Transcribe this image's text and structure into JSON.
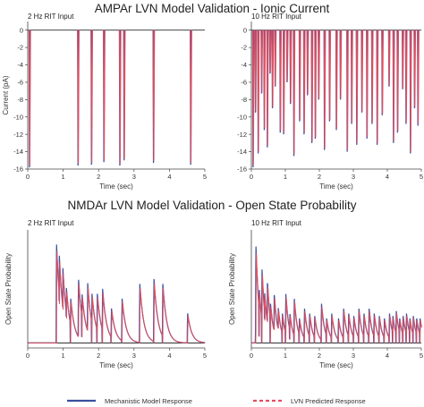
{
  "titles": {
    "top": "AMPAr LVN Model Validation - Ionic Current",
    "bottom": "NMDAr LVN Model Validation - Open State Probability"
  },
  "colors": {
    "mechanistic": "#3a4fa0",
    "lvn": "#e05060",
    "axis": "#444444",
    "baseline": "#2a2a2a"
  },
  "legend": {
    "mechanistic": "Mechanistic Model Response",
    "lvn": "LVN Predicted Response",
    "placement": "bottom"
  },
  "chart_data": [
    {
      "id": "ampa-2hz",
      "type": "line",
      "title": "2 Hz RIT Input",
      "xlabel": "Time (sec)",
      "ylabel": "Current (pA)",
      "xlim": [
        0,
        5
      ],
      "ylim": [
        -16,
        1
      ],
      "xticks": [
        0,
        1,
        2,
        3,
        4,
        5
      ],
      "yticks": [
        0,
        -2,
        -4,
        -6,
        -8,
        -10,
        -12,
        -14,
        -16
      ],
      "grid": false,
      "events": [
        {
          "t": 0.05,
          "peak": -15.8
        },
        {
          "t": 1.42,
          "peak": -15.6
        },
        {
          "t": 1.8,
          "peak": -15.5
        },
        {
          "t": 2.15,
          "peak": -15.2
        },
        {
          "t": 2.6,
          "peak": -15.6
        },
        {
          "t": 2.72,
          "peak": -15.0
        },
        {
          "t": 3.55,
          "peak": -15.3
        },
        {
          "t": 4.6,
          "peak": -15.5
        }
      ],
      "series": [
        {
          "name": "Mechanistic Model Response"
        },
        {
          "name": "LVN Predicted Response"
        }
      ]
    },
    {
      "id": "ampa-10hz",
      "type": "line",
      "title": "10 Hz RIT Input",
      "xlabel": "Time (sec)",
      "ylabel": "",
      "xlim": [
        0,
        5
      ],
      "ylim": [
        -16,
        1
      ],
      "xticks": [
        0,
        1,
        2,
        3,
        4,
        5
      ],
      "yticks": [
        0,
        -2,
        -4,
        -6,
        -8,
        -10,
        -12,
        -14,
        -16
      ],
      "grid": false,
      "events": [
        {
          "t": 0.05,
          "peak": -15.8
        },
        {
          "t": 0.12,
          "peak": -9.5
        },
        {
          "t": 0.2,
          "peak": -14.2
        },
        {
          "t": 0.3,
          "peak": -7.3
        },
        {
          "t": 0.38,
          "peak": -11.5
        },
        {
          "t": 0.47,
          "peak": -13.5
        },
        {
          "t": 0.55,
          "peak": -5.0
        },
        {
          "t": 0.62,
          "peak": -9.0
        },
        {
          "t": 0.7,
          "peak": -6.5
        },
        {
          "t": 0.85,
          "peak": -11.8
        },
        {
          "t": 0.95,
          "peak": -12.0
        },
        {
          "t": 1.05,
          "peak": -6.0
        },
        {
          "t": 1.15,
          "peak": -8.5
        },
        {
          "t": 1.25,
          "peak": -14.5
        },
        {
          "t": 1.42,
          "peak": -10.5
        },
        {
          "t": 1.55,
          "peak": -12.0
        },
        {
          "t": 1.65,
          "peak": -7.5
        },
        {
          "t": 1.78,
          "peak": -13.0
        },
        {
          "t": 1.88,
          "peak": -12.5
        },
        {
          "t": 1.98,
          "peak": -8.0
        },
        {
          "t": 2.15,
          "peak": -13.8
        },
        {
          "t": 2.3,
          "peak": -10.5
        },
        {
          "t": 2.5,
          "peak": -11.5
        },
        {
          "t": 2.62,
          "peak": -8.0
        },
        {
          "t": 2.82,
          "peak": -14.0
        },
        {
          "t": 2.95,
          "peak": -10.8
        },
        {
          "t": 3.1,
          "peak": -13.2
        },
        {
          "t": 3.25,
          "peak": -9.5
        },
        {
          "t": 3.4,
          "peak": -12.5
        },
        {
          "t": 3.55,
          "peak": -10.8
        },
        {
          "t": 3.7,
          "peak": -13.2
        },
        {
          "t": 3.85,
          "peak": -9.8
        },
        {
          "t": 4.05,
          "peak": -6.5
        },
        {
          "t": 4.18,
          "peak": -13.0
        },
        {
          "t": 4.3,
          "peak": -11.8
        },
        {
          "t": 4.45,
          "peak": -6.8
        },
        {
          "t": 4.55,
          "peak": -10.8
        },
        {
          "t": 4.68,
          "peak": -14.2
        },
        {
          "t": 4.8,
          "peak": -9.0
        },
        {
          "t": 4.9,
          "peak": -11.0
        }
      ],
      "series": [
        {
          "name": "Mechanistic Model Response"
        },
        {
          "name": "LVN Predicted Response"
        }
      ]
    },
    {
      "id": "nmda-2hz",
      "type": "line",
      "title": "2 Hz RIT Input",
      "xlabel": "Time (sec)",
      "ylabel": "Open State Probability",
      "xlim": [
        0,
        5
      ],
      "ylim": [
        -0.02,
        0.45
      ],
      "xticks": [
        0,
        1,
        2,
        3,
        4,
        5
      ],
      "yticks": [],
      "grid": false,
      "decay_tau": 0.11,
      "events": [
        {
          "t": 0.8,
          "peak": 0.4
        },
        {
          "t": 0.88,
          "peak": 0.35
        },
        {
          "t": 0.98,
          "peak": 0.3
        },
        {
          "t": 1.08,
          "peak": 0.22
        },
        {
          "t": 1.2,
          "peak": 0.18
        },
        {
          "t": 1.42,
          "peak": 0.26
        },
        {
          "t": 1.52,
          "peak": 0.2
        },
        {
          "t": 1.68,
          "peak": 0.24
        },
        {
          "t": 1.8,
          "peak": 0.2
        },
        {
          "t": 1.95,
          "peak": 0.2
        },
        {
          "t": 2.1,
          "peak": 0.22
        },
        {
          "t": 2.35,
          "peak": 0.14
        },
        {
          "t": 2.65,
          "peak": 0.18
        },
        {
          "t": 3.15,
          "peak": 0.24
        },
        {
          "t": 3.55,
          "peak": 0.26
        },
        {
          "t": 3.8,
          "peak": 0.24
        },
        {
          "t": 4.5,
          "peak": 0.12
        }
      ],
      "series": [
        {
          "name": "Mechanistic Model Response"
        },
        {
          "name": "LVN Predicted Response"
        }
      ]
    },
    {
      "id": "nmda-10hz",
      "type": "line",
      "title": "10 Hz RIT Input",
      "xlabel": "Time (sec)",
      "ylabel": "Open State Probability",
      "xlim": [
        0,
        5
      ],
      "ylim": [
        -0.02,
        0.45
      ],
      "xticks": [
        0,
        1,
        2,
        3,
        4,
        5
      ],
      "yticks": [],
      "grid": false,
      "decay_tau": 0.09,
      "events": [
        {
          "t": 0.12,
          "peak": 0.4
        },
        {
          "t": 0.22,
          "peak": 0.22
        },
        {
          "t": 0.3,
          "peak": 0.3
        },
        {
          "t": 0.38,
          "peak": 0.2
        },
        {
          "t": 0.46,
          "peak": 0.25
        },
        {
          "t": 0.55,
          "peak": 0.16
        },
        {
          "t": 0.66,
          "peak": 0.2
        },
        {
          "t": 0.78,
          "peak": 0.14
        },
        {
          "t": 0.9,
          "peak": 0.12
        },
        {
          "t": 1.0,
          "peak": 0.2
        },
        {
          "t": 1.12,
          "peak": 0.12
        },
        {
          "t": 1.25,
          "peak": 0.18
        },
        {
          "t": 1.4,
          "peak": 0.1
        },
        {
          "t": 1.55,
          "peak": 0.14
        },
        {
          "t": 1.7,
          "peak": 0.12
        },
        {
          "t": 1.85,
          "peak": 0.11
        },
        {
          "t": 2.05,
          "peak": 0.16
        },
        {
          "t": 2.2,
          "peak": 0.1
        },
        {
          "t": 2.35,
          "peak": 0.12
        },
        {
          "t": 2.55,
          "peak": 0.1
        },
        {
          "t": 2.7,
          "peak": 0.14
        },
        {
          "t": 2.85,
          "peak": 0.12
        },
        {
          "t": 3.0,
          "peak": 0.11
        },
        {
          "t": 3.15,
          "peak": 0.14
        },
        {
          "t": 3.3,
          "peak": 0.12
        },
        {
          "t": 3.45,
          "peak": 0.14
        },
        {
          "t": 3.6,
          "peak": 0.12
        },
        {
          "t": 3.75,
          "peak": 0.11
        },
        {
          "t": 3.9,
          "peak": 0.1
        },
        {
          "t": 4.05,
          "peak": 0.12
        },
        {
          "t": 4.15,
          "peak": 0.11
        },
        {
          "t": 4.25,
          "peak": 0.13
        },
        {
          "t": 4.35,
          "peak": 0.1
        },
        {
          "t": 4.45,
          "peak": 0.11
        },
        {
          "t": 4.55,
          "peak": 0.12
        },
        {
          "t": 4.65,
          "peak": 0.1
        },
        {
          "t": 4.75,
          "peak": 0.11
        },
        {
          "t": 4.85,
          "peak": 0.1
        },
        {
          "t": 4.95,
          "peak": 0.1
        }
      ],
      "series": [
        {
          "name": "Mechanistic Model Response"
        },
        {
          "name": "LVN Predicted Response"
        }
      ]
    }
  ]
}
